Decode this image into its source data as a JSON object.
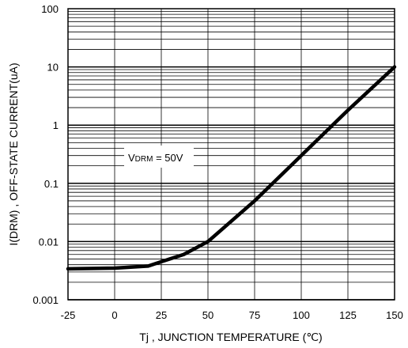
{
  "chart_data": {
    "type": "line",
    "xlabel": "Tj , JUNCTION TEMPERATURE (℃)",
    "ylabel": "I(DRM) , OFF-STATE CURRENT(uA)",
    "xlim": [
      -25,
      150
    ],
    "ylim": [
      0.001,
      100
    ],
    "yscale": "log",
    "grid": true,
    "x_ticks": [
      "-25",
      "0",
      "25",
      "50",
      "75",
      "100",
      "125",
      "150"
    ],
    "y_ticks": [
      "0.001",
      "0.01",
      "0.1",
      "1",
      "10",
      "100"
    ],
    "annotation": {
      "prefix": "V",
      "sub": "DRM",
      "suffix": " = 50V"
    },
    "series": [
      {
        "x": [
          -25,
          0,
          18,
          25,
          37,
          50,
          75,
          100,
          125,
          150
        ],
        "y": [
          0.0034,
          0.0035,
          0.0038,
          0.0045,
          0.006,
          0.01,
          0.05,
          0.3,
          1.8,
          10
        ]
      }
    ]
  }
}
